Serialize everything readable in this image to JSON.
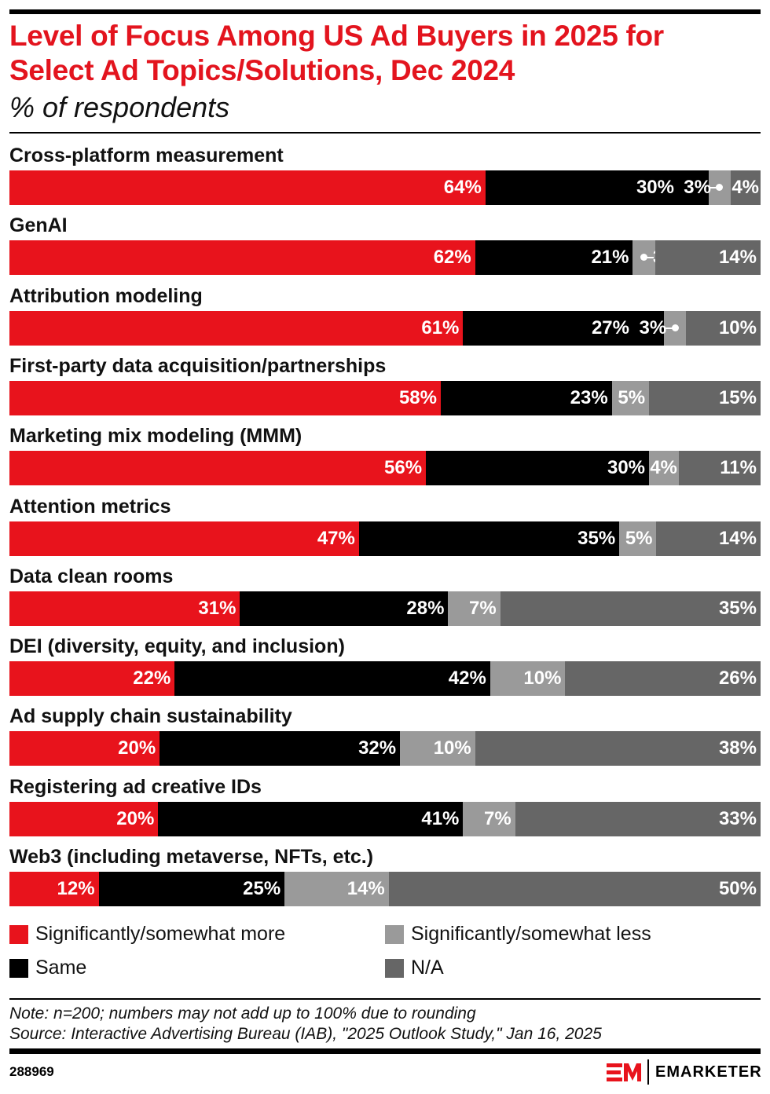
{
  "header": {
    "title": "Level of Focus Among US Ad Buyers in 2025 for Select Ad Topics/Solutions, Dec 2024",
    "subtitle": "% of respondents"
  },
  "chart_data": {
    "type": "bar",
    "orientation": "horizontal",
    "stacked": true,
    "title": "Level of Focus Among US Ad Buyers in 2025 for Select Ad Topics/Solutions, Dec 2024",
    "subtitle": "% of respondents",
    "categories": [
      "Cross-platform measurement",
      "GenAI",
      "Attribution modeling",
      "First-party data acquisition/partnerships",
      "Marketing mix modeling (MMM)",
      "Attention metrics",
      "Data clean rooms",
      "DEI (diversity, equity, and inclusion)",
      "Ad supply chain sustainability",
      "Registering ad creative IDs",
      "Web3 (including metaverse, NFTs, etc.)"
    ],
    "series": [
      {
        "name": "Significantly/somewhat more",
        "color": "#e8131c",
        "values": [
          64,
          62,
          61,
          58,
          56,
          47,
          31,
          22,
          20,
          20,
          12
        ]
      },
      {
        "name": "Same",
        "color": "#000000",
        "values": [
          30,
          21,
          27,
          23,
          30,
          35,
          28,
          42,
          32,
          41,
          25
        ]
      },
      {
        "name": "Significantly/somewhat less",
        "color": "#9a9a9a",
        "values": [
          3,
          3,
          3,
          5,
          4,
          5,
          7,
          10,
          10,
          7,
          14
        ]
      },
      {
        "name": "N/A",
        "color": "#666666",
        "values": [
          4,
          14,
          10,
          15,
          11,
          14,
          35,
          26,
          38,
          33,
          50
        ]
      }
    ],
    "value_suffix": "%",
    "legend_position": "bottom",
    "grid": false
  },
  "footer": {
    "note": "Note: n=200; numbers may not add up to 100% due to rounding",
    "source": "Source: Interactive Advertising Bureau (IAB), \"2025 Outlook Study,\" Jan 16, 2025",
    "chart_id": "288969",
    "brand": "EMARKETER"
  }
}
